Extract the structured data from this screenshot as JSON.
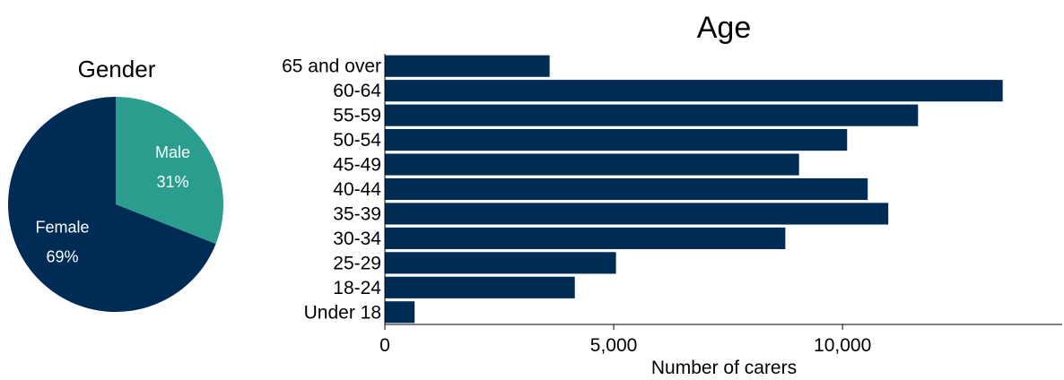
{
  "colors": {
    "navy": "#002b55",
    "teal": "#2a9d8f"
  },
  "chart_data": [
    {
      "type": "pie",
      "title": "Gender",
      "slices": [
        {
          "name": "Male",
          "value": 31,
          "label": "31%",
          "color": "#2a9d8f"
        },
        {
          "name": "Female",
          "value": 69,
          "label": "69%",
          "color": "#002b55"
        }
      ]
    },
    {
      "type": "bar",
      "orientation": "horizontal",
      "title": "Age",
      "xlabel": "Number of carers",
      "xlim": [
        0,
        14800
      ],
      "xticks": [
        0,
        5000,
        10000
      ],
      "xtick_labels": [
        "0",
        "5,000",
        "10,000"
      ],
      "categories": [
        "65 and over",
        "60-64",
        "55-59",
        "50-54",
        "45-49",
        "40-44",
        "35-39",
        "30-34",
        "25-29",
        "18-24",
        "Under 18"
      ],
      "values": [
        3600,
        13500,
        11650,
        10100,
        9050,
        10550,
        11000,
        8750,
        5050,
        4150,
        650
      ],
      "color": "#002b55",
      "grid": false
    }
  ]
}
